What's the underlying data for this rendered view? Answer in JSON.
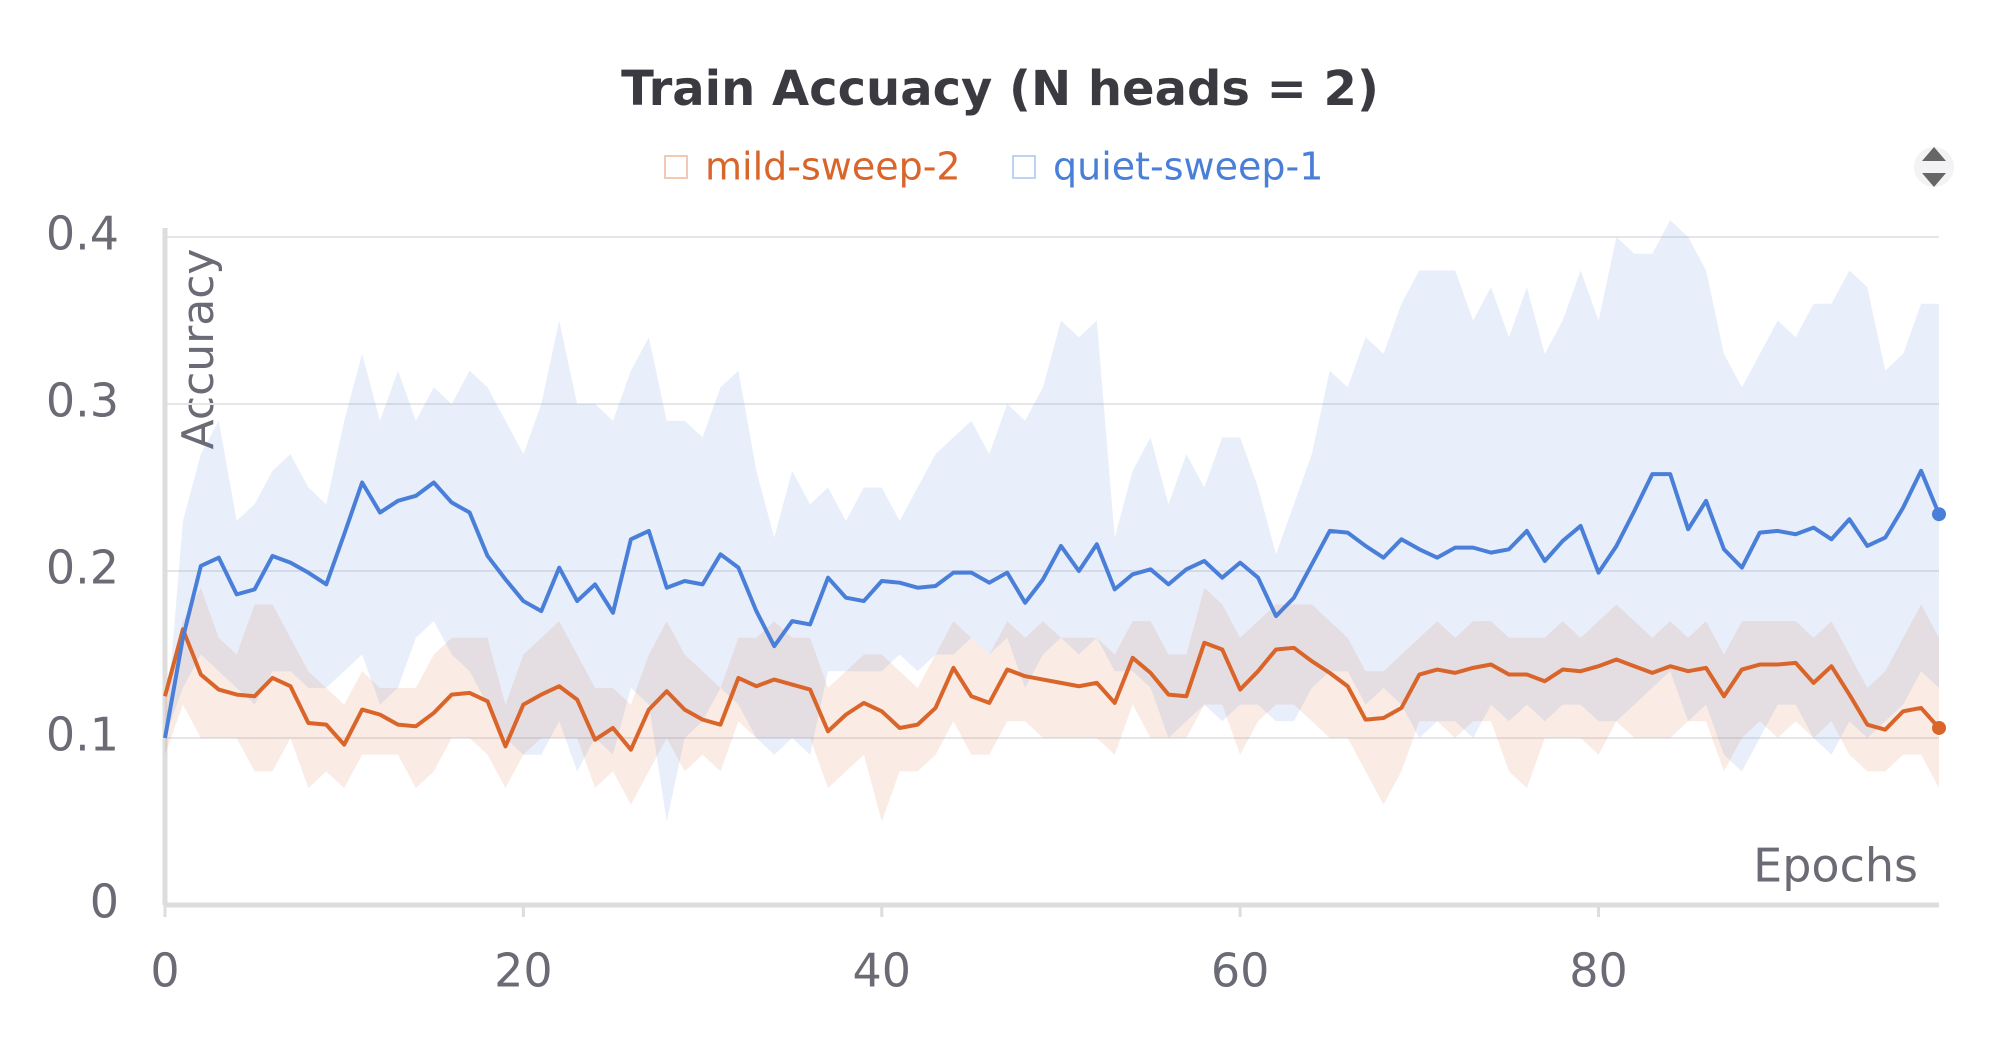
{
  "chart_data": {
    "type": "line",
    "title": "Train Accuacy (N heads = 2)",
    "xlabel": "Epochs",
    "ylabel": "Accuracy",
    "legend": "top",
    "xlim": [
      0,
      99
    ],
    "xticks": [
      0,
      20,
      40,
      60,
      80
    ],
    "ylim": [
      0,
      0.4
    ],
    "yticks": [
      0,
      0.1,
      0.2,
      0.3,
      0.4
    ],
    "grid": true,
    "x": [
      0,
      1,
      2,
      3,
      4,
      5,
      6,
      7,
      8,
      9,
      10,
      11,
      12,
      13,
      14,
      15,
      16,
      17,
      18,
      19,
      20,
      21,
      22,
      23,
      24,
      25,
      26,
      27,
      28,
      29,
      30,
      31,
      32,
      33,
      34,
      35,
      36,
      37,
      38,
      39,
      40,
      41,
      42,
      43,
      44,
      45,
      46,
      47,
      48,
      49,
      50,
      51,
      52,
      53,
      54,
      55,
      56,
      57,
      58,
      59,
      60,
      61,
      62,
      63,
      64,
      65,
      66,
      67,
      68,
      69,
      70,
      71,
      72,
      73,
      74,
      75,
      76,
      77,
      78,
      79,
      80,
      81,
      82,
      83,
      84,
      85,
      86,
      87,
      88,
      89,
      90,
      91,
      92,
      93,
      94,
      95,
      96,
      97,
      98,
      99
    ],
    "series": [
      {
        "name": "mild-sweep-2",
        "color": "#d9652b",
        "values": [
          0.125,
          0.165,
          0.138,
          0.129,
          0.126,
          0.125,
          0.136,
          0.131,
          0.109,
          0.108,
          0.096,
          0.117,
          0.114,
          0.108,
          0.107,
          0.115,
          0.126,
          0.127,
          0.122,
          0.095,
          0.12,
          0.126,
          0.131,
          0.123,
          0.099,
          0.106,
          0.093,
          0.117,
          0.128,
          0.117,
          0.111,
          0.108,
          0.136,
          0.131,
          0.135,
          0.132,
          0.129,
          0.104,
          0.114,
          0.121,
          0.116,
          0.106,
          0.108,
          0.118,
          0.142,
          0.125,
          0.121,
          0.141,
          0.137,
          0.135,
          0.133,
          0.131,
          0.133,
          0.121,
          0.148,
          0.139,
          0.126,
          0.125,
          0.157,
          0.153,
          0.129,
          0.14,
          0.153,
          0.154,
          0.146,
          0.139,
          0.131,
          0.111,
          0.112,
          0.118,
          0.138,
          0.141,
          0.139,
          0.142,
          0.144,
          0.138,
          0.138,
          0.134,
          0.141,
          0.14,
          0.143,
          0.147,
          0.143,
          0.139,
          0.143,
          0.14,
          0.142,
          0.125,
          0.141,
          0.144,
          0.144,
          0.145,
          0.133,
          0.143,
          0.126,
          0.108,
          0.105,
          0.116,
          0.118,
          0.106
        ],
        "max": [
          0.13,
          0.17,
          0.19,
          0.16,
          0.15,
          0.18,
          0.18,
          0.16,
          0.14,
          0.13,
          0.12,
          0.14,
          0.13,
          0.13,
          0.13,
          0.15,
          0.16,
          0.16,
          0.16,
          0.12,
          0.15,
          0.16,
          0.17,
          0.15,
          0.13,
          0.13,
          0.12,
          0.15,
          0.17,
          0.15,
          0.14,
          0.13,
          0.16,
          0.16,
          0.17,
          0.16,
          0.16,
          0.13,
          0.14,
          0.15,
          0.15,
          0.14,
          0.13,
          0.15,
          0.17,
          0.16,
          0.15,
          0.17,
          0.16,
          0.17,
          0.16,
          0.16,
          0.16,
          0.15,
          0.17,
          0.17,
          0.15,
          0.15,
          0.19,
          0.18,
          0.16,
          0.17,
          0.18,
          0.18,
          0.18,
          0.17,
          0.16,
          0.14,
          0.14,
          0.15,
          0.16,
          0.17,
          0.16,
          0.17,
          0.17,
          0.16,
          0.16,
          0.16,
          0.17,
          0.16,
          0.17,
          0.18,
          0.17,
          0.16,
          0.17,
          0.16,
          0.17,
          0.15,
          0.17,
          0.17,
          0.17,
          0.17,
          0.16,
          0.17,
          0.15,
          0.13,
          0.14,
          0.16,
          0.18,
          0.16
        ],
        "min": [
          0.09,
          0.12,
          0.1,
          0.1,
          0.1,
          0.08,
          0.08,
          0.1,
          0.07,
          0.08,
          0.07,
          0.09,
          0.09,
          0.09,
          0.07,
          0.08,
          0.1,
          0.1,
          0.09,
          0.07,
          0.09,
          0.1,
          0.1,
          0.1,
          0.07,
          0.08,
          0.06,
          0.08,
          0.1,
          0.08,
          0.09,
          0.08,
          0.11,
          0.1,
          0.1,
          0.1,
          0.1,
          0.07,
          0.08,
          0.09,
          0.05,
          0.08,
          0.08,
          0.09,
          0.11,
          0.09,
          0.09,
          0.11,
          0.11,
          0.1,
          0.1,
          0.1,
          0.1,
          0.09,
          0.12,
          0.1,
          0.1,
          0.1,
          0.12,
          0.12,
          0.09,
          0.11,
          0.12,
          0.12,
          0.11,
          0.1,
          0.1,
          0.08,
          0.06,
          0.08,
          0.11,
          0.11,
          0.1,
          0.11,
          0.11,
          0.08,
          0.07,
          0.1,
          0.1,
          0.1,
          0.09,
          0.11,
          0.1,
          0.1,
          0.1,
          0.11,
          0.11,
          0.08,
          0.1,
          0.11,
          0.1,
          0.11,
          0.1,
          0.11,
          0.09,
          0.08,
          0.08,
          0.09,
          0.09,
          0.07
        ]
      },
      {
        "name": "quiet-sweep-1",
        "color": "#4a7fd9",
        "values": [
          0.1,
          0.16,
          0.203,
          0.208,
          0.186,
          0.189,
          0.209,
          0.205,
          0.199,
          0.192,
          0.222,
          0.253,
          0.235,
          0.242,
          0.245,
          0.253,
          0.241,
          0.235,
          0.209,
          0.195,
          0.182,
          0.176,
          0.202,
          0.182,
          0.192,
          0.175,
          0.219,
          0.224,
          0.19,
          0.194,
          0.192,
          0.21,
          0.202,
          0.176,
          0.155,
          0.17,
          0.168,
          0.196,
          0.184,
          0.182,
          0.194,
          0.193,
          0.19,
          0.191,
          0.199,
          0.199,
          0.193,
          0.199,
          0.181,
          0.195,
          0.215,
          0.2,
          0.216,
          0.189,
          0.198,
          0.201,
          0.192,
          0.201,
          0.206,
          0.196,
          0.205,
          0.196,
          0.173,
          0.184,
          0.204,
          0.224,
          0.223,
          0.215,
          0.208,
          0.219,
          0.213,
          0.208,
          0.214,
          0.214,
          0.211,
          0.213,
          0.224,
          0.206,
          0.218,
          0.227,
          0.199,
          0.215,
          0.236,
          0.258,
          0.258,
          0.225,
          0.242,
          0.213,
          0.202,
          0.223,
          0.224,
          0.222,
          0.226,
          0.219,
          0.231,
          0.215,
          0.22,
          0.238,
          0.26,
          0.234
        ],
        "max": [
          0.1,
          0.23,
          0.27,
          0.29,
          0.23,
          0.24,
          0.26,
          0.27,
          0.25,
          0.24,
          0.29,
          0.33,
          0.29,
          0.32,
          0.29,
          0.31,
          0.3,
          0.32,
          0.31,
          0.29,
          0.27,
          0.3,
          0.35,
          0.3,
          0.3,
          0.29,
          0.32,
          0.34,
          0.29,
          0.29,
          0.28,
          0.31,
          0.32,
          0.26,
          0.22,
          0.26,
          0.24,
          0.25,
          0.23,
          0.25,
          0.25,
          0.23,
          0.25,
          0.27,
          0.28,
          0.29,
          0.27,
          0.3,
          0.29,
          0.31,
          0.35,
          0.34,
          0.35,
          0.22,
          0.26,
          0.28,
          0.24,
          0.27,
          0.25,
          0.28,
          0.28,
          0.25,
          0.21,
          0.24,
          0.27,
          0.32,
          0.31,
          0.34,
          0.33,
          0.36,
          0.38,
          0.38,
          0.38,
          0.35,
          0.37,
          0.34,
          0.37,
          0.33,
          0.35,
          0.38,
          0.35,
          0.4,
          0.39,
          0.39,
          0.41,
          0.4,
          0.38,
          0.33,
          0.31,
          0.33,
          0.35,
          0.34,
          0.36,
          0.36,
          0.38,
          0.37,
          0.32,
          0.33,
          0.36,
          0.36
        ],
        "min": [
          0.1,
          0.13,
          0.15,
          0.14,
          0.13,
          0.12,
          0.14,
          0.14,
          0.13,
          0.13,
          0.14,
          0.15,
          0.12,
          0.13,
          0.16,
          0.17,
          0.15,
          0.14,
          0.12,
          0.1,
          0.09,
          0.09,
          0.11,
          0.08,
          0.1,
          0.09,
          0.13,
          0.12,
          0.05,
          0.1,
          0.11,
          0.13,
          0.12,
          0.1,
          0.09,
          0.1,
          0.09,
          0.14,
          0.14,
          0.14,
          0.14,
          0.15,
          0.14,
          0.15,
          0.15,
          0.16,
          0.15,
          0.16,
          0.13,
          0.15,
          0.16,
          0.15,
          0.16,
          0.14,
          0.14,
          0.13,
          0.1,
          0.11,
          0.12,
          0.11,
          0.12,
          0.12,
          0.11,
          0.11,
          0.13,
          0.14,
          0.14,
          0.12,
          0.13,
          0.12,
          0.1,
          0.11,
          0.11,
          0.1,
          0.12,
          0.11,
          0.12,
          0.11,
          0.12,
          0.12,
          0.11,
          0.11,
          0.12,
          0.13,
          0.14,
          0.11,
          0.12,
          0.09,
          0.08,
          0.1,
          0.12,
          0.12,
          0.1,
          0.09,
          0.11,
          0.1,
          0.11,
          0.12,
          0.14,
          0.13
        ]
      }
    ]
  }
}
